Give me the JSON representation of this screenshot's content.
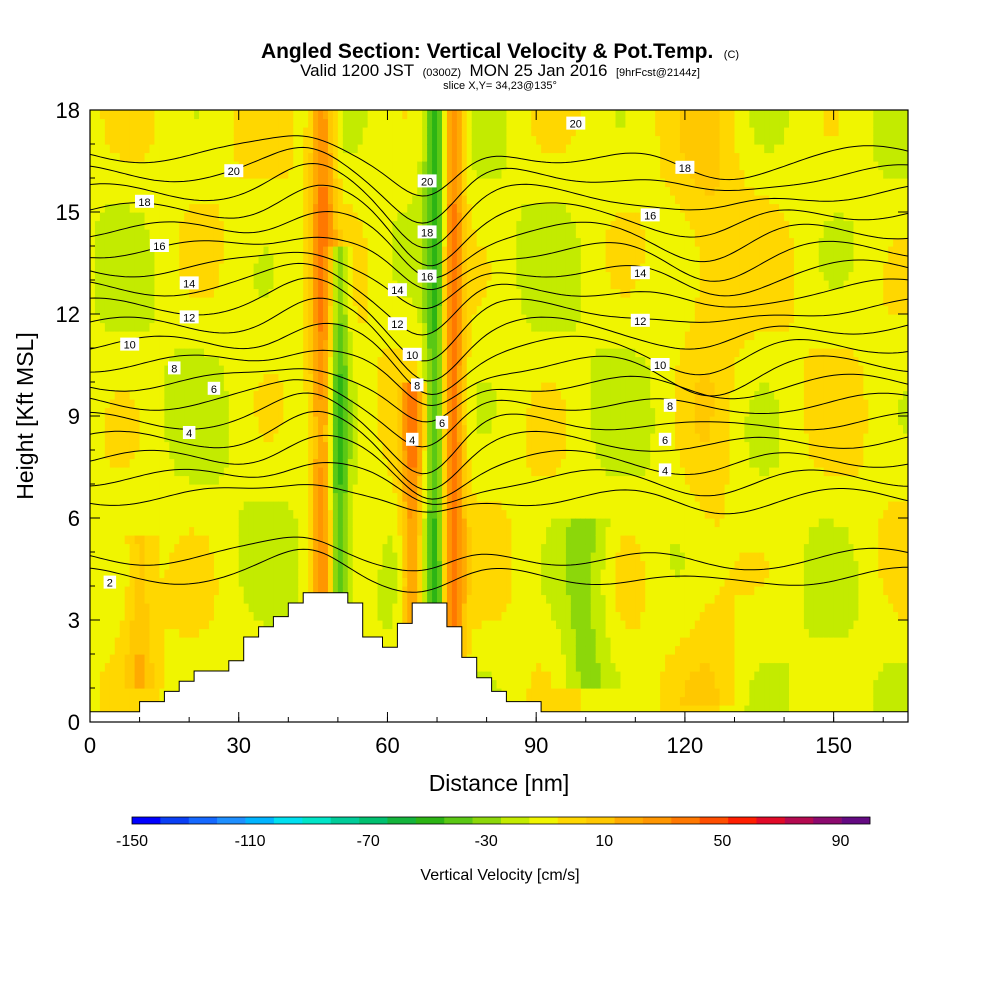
{
  "chart_data": {
    "type": "heatmap",
    "title": "Angled Section: Vertical Velocity & Pot.Temp.",
    "title_suffix": "(C)",
    "subtitle": {
      "prefix": "Valid 1200 JST",
      "utc": "(0300Z)",
      "date": "MON 25 Jan 2016",
      "forecast": "[9hrFcst@2144z]"
    },
    "slice_label": "slice X,Y= 34,23@135°",
    "xlabel": "Distance [nm]",
    "ylabel": "Height [Kft MSL]",
    "xlim": [
      0,
      165
    ],
    "ylim": [
      0,
      18
    ],
    "x_ticks": [
      0,
      30,
      60,
      90,
      120,
      150
    ],
    "y_ticks": [
      0,
      3,
      6,
      9,
      12,
      15,
      18
    ],
    "colorbar": {
      "label": "Vertical Velocity [cm/s]",
      "tick_labels": [
        -150,
        -110,
        -70,
        -30,
        10,
        50,
        90
      ],
      "min": -150,
      "max": 100,
      "step": 10,
      "colors": [
        "#0000ff",
        "#0a3ff5",
        "#1568ff",
        "#1e8fff",
        "#00b4ff",
        "#00e0f0",
        "#00e5c8",
        "#00cc99",
        "#00c070",
        "#14b43c",
        "#2cb414",
        "#5ac814",
        "#8cd70a",
        "#c3eb00",
        "#f0f500",
        "#ffd700",
        "#ffc800",
        "#ffaa00",
        "#ff9600",
        "#ff7800",
        "#ff4e00",
        "#ff1e00",
        "#e10a28",
        "#b40a50",
        "#8c0a6e",
        "#640a82"
      ]
    },
    "terrain": [
      [
        0,
        0.3
      ],
      [
        10,
        0.3
      ],
      [
        10,
        0.6
      ],
      [
        15,
        0.6
      ],
      [
        15,
        0.9
      ],
      [
        18,
        0.9
      ],
      [
        18,
        1.2
      ],
      [
        21,
        1.2
      ],
      [
        21,
        1.5
      ],
      [
        28,
        1.5
      ],
      [
        28,
        1.8
      ],
      [
        31,
        1.8
      ],
      [
        31,
        2.5
      ],
      [
        34,
        2.5
      ],
      [
        34,
        2.8
      ],
      [
        37,
        2.8
      ],
      [
        37,
        3.1
      ],
      [
        40,
        3.1
      ],
      [
        40,
        3.5
      ],
      [
        43,
        3.5
      ],
      [
        43,
        3.8
      ],
      [
        52,
        3.8
      ],
      [
        52,
        3.5
      ],
      [
        55,
        3.5
      ],
      [
        55,
        2.5
      ],
      [
        59,
        2.5
      ],
      [
        59,
        2.2
      ],
      [
        62,
        2.2
      ],
      [
        62,
        2.9
      ],
      [
        65,
        2.9
      ],
      [
        65,
        3.5
      ],
      [
        72,
        3.5
      ],
      [
        72,
        2.8
      ],
      [
        75,
        2.8
      ],
      [
        75,
        1.9
      ],
      [
        78,
        1.9
      ],
      [
        78,
        1.3
      ],
      [
        81,
        1.3
      ],
      [
        81,
        0.9
      ],
      [
        84,
        0.9
      ],
      [
        84,
        0.6
      ],
      [
        91,
        0.6
      ],
      [
        91,
        0.3
      ],
      [
        165,
        0.3
      ]
    ],
    "velocity_features": [
      {
        "x": 47,
        "z_min": 0.0,
        "z_max": 18,
        "w": 45,
        "width": 2.4
      },
      {
        "x": 50,
        "z_min": 0.0,
        "z_max": 14,
        "w": -40,
        "width": 2.2
      },
      {
        "x": 65,
        "z_min": 0.0,
        "z_max": 10,
        "w": 40,
        "width": 2.2
      },
      {
        "x": 70,
        "z_min": 0.0,
        "z_max": 18,
        "w": -45,
        "width": 2.4
      },
      {
        "x": 73,
        "z_min": 0.0,
        "z_max": 18,
        "w": 55,
        "width": 2.4
      },
      {
        "x": 10,
        "z_min": 1.0,
        "z_max": 5.5,
        "w": 20,
        "width": 3.0
      },
      {
        "x": 125,
        "z_min": 0.5,
        "z_max": 18,
        "w": 12,
        "width": 6.0
      },
      {
        "x": 100,
        "z_min": 1.0,
        "z_max": 6.0,
        "w": -22,
        "width": 5.0
      }
    ],
    "contour_levels": [
      2,
      3,
      4,
      5,
      6,
      7,
      8,
      9,
      10,
      11,
      12,
      13,
      14,
      15,
      16,
      17,
      18,
      19,
      20,
      21,
      22
    ],
    "contour_labels": [
      {
        "text": "2",
        "x": 4,
        "y": 4.1
      },
      {
        "text": "4",
        "x": 20,
        "y": 8.5
      },
      {
        "text": "6",
        "x": 25,
        "y": 9.8
      },
      {
        "text": "8",
        "x": 17,
        "y": 10.4
      },
      {
        "text": "10",
        "x": 8,
        "y": 11.1
      },
      {
        "text": "12",
        "x": 20,
        "y": 11.9
      },
      {
        "text": "14",
        "x": 20,
        "y": 12.9
      },
      {
        "text": "16",
        "x": 14,
        "y": 14.0
      },
      {
        "text": "18",
        "x": 11,
        "y": 15.3
      },
      {
        "text": "20",
        "x": 29,
        "y": 16.2
      },
      {
        "text": "4",
        "x": 65,
        "y": 8.3
      },
      {
        "text": "8",
        "x": 66,
        "y": 9.9
      },
      {
        "text": "10",
        "x": 65,
        "y": 10.8
      },
      {
        "text": "12",
        "x": 62,
        "y": 11.7
      },
      {
        "text": "14",
        "x": 62,
        "y": 12.7
      },
      {
        "text": "16",
        "x": 68,
        "y": 13.1
      },
      {
        "text": "18",
        "x": 68,
        "y": 14.4
      },
      {
        "text": "20",
        "x": 68,
        "y": 15.9
      },
      {
        "text": "6",
        "x": 71,
        "y": 8.8
      },
      {
        "text": "4",
        "x": 116,
        "y": 7.4
      },
      {
        "text": "6",
        "x": 116,
        "y": 8.3
      },
      {
        "text": "8",
        "x": 117,
        "y": 9.3
      },
      {
        "text": "10",
        "x": 115,
        "y": 10.5
      },
      {
        "text": "12",
        "x": 111,
        "y": 11.8
      },
      {
        "text": "14",
        "x": 111,
        "y": 13.2
      },
      {
        "text": "16",
        "x": 113,
        "y": 14.9
      },
      {
        "text": "18",
        "x": 120,
        "y": 16.3
      },
      {
        "text": "20",
        "x": 98,
        "y": 17.6
      }
    ]
  }
}
